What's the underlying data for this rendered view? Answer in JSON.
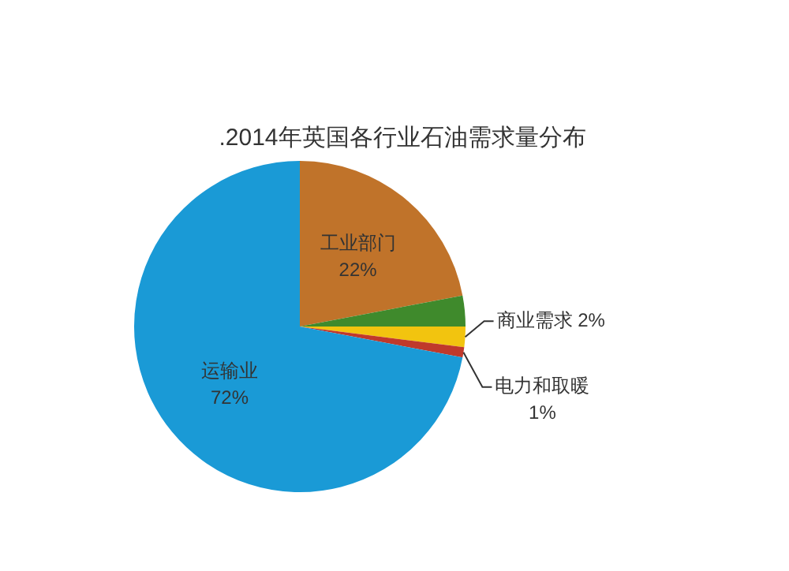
{
  "chart_data": {
    "type": "pie",
    "title": ".2014年英国各行业石油需求量分布",
    "categories": [
      "工业部门",
      null,
      "商业需求",
      "电力和取暖",
      "运输业"
    ],
    "values": [
      22,
      3,
      2,
      1,
      72
    ],
    "value_labels": [
      "22%",
      null,
      "2%",
      "1%",
      "72%"
    ],
    "colors": [
      "#c0732a",
      "#3f8a2c",
      "#f2c40f",
      "#c0392b",
      "#1a9ad6"
    ],
    "legend": false
  }
}
